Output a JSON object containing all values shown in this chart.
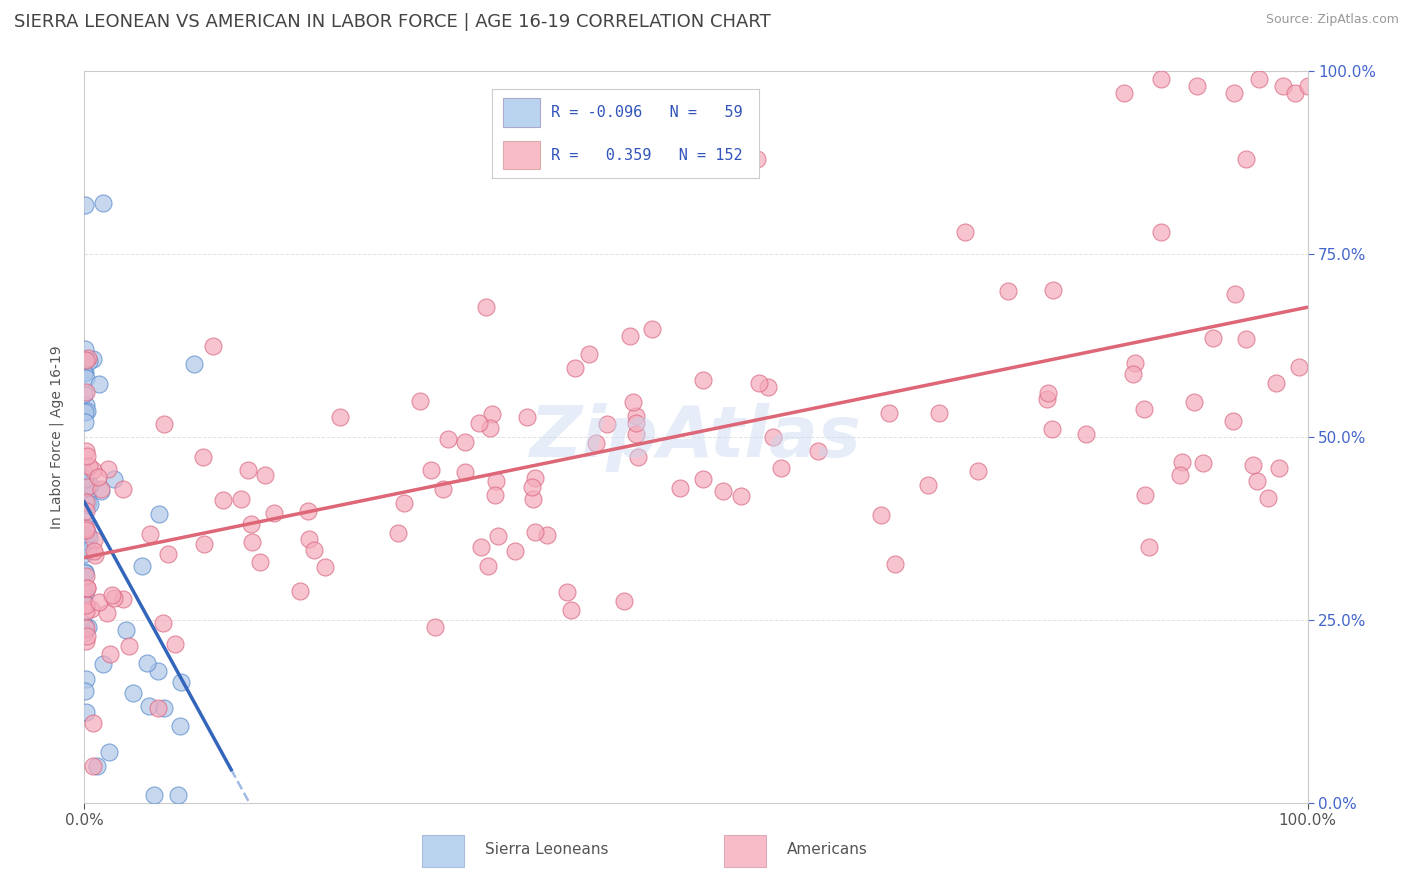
{
  "title": "SIERRA LEONEAN VS AMERICAN IN LABOR FORCE | AGE 16-19 CORRELATION CHART",
  "source": "Source: ZipAtlas.com",
  "ylabel": "In Labor Force | Age 16-19",
  "xlim": [
    0.0,
    1.0
  ],
  "ylim": [
    0.0,
    1.0
  ],
  "sl_R": -0.096,
  "sl_N": 59,
  "am_R": 0.359,
  "am_N": 152,
  "sl_color_face": "#aec6e8",
  "sl_color_edge": "#5588cc",
  "am_color_face": "#f4aabb",
  "am_color_edge": "#d96680",
  "sl_trend_solid_color": "#3366bb",
  "sl_trend_dash_color": "#88aadd",
  "am_trend_color": "#dd6677",
  "sl_legend_face": "#bad4f0",
  "am_legend_face": "#f8bcc8",
  "legend_border": "#cccccc",
  "legend_text_color": "#3355bb",
  "watermark_color": "#c8d8f0",
  "title_color": "#444444",
  "right_tick_color": "#4466cc",
  "grid_color": "#e0e0e0",
  "title_fontsize": 13,
  "axis_label_fontsize": 10,
  "tick_fontsize": 11,
  "source_fontsize": 9
}
